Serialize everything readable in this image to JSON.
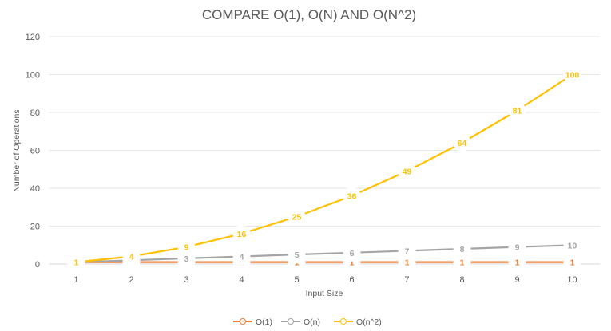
{
  "chart_data": {
    "type": "line",
    "title": "COMPARE O(1), O(N) AND O(N^2)",
    "xlabel": "Input Size",
    "ylabel": "Number of Operations",
    "categories": [
      "1",
      "2",
      "3",
      "4",
      "5",
      "6",
      "7",
      "8",
      "9",
      "10"
    ],
    "ylim": [
      0,
      120
    ],
    "yticks": [
      0,
      20,
      40,
      60,
      80,
      100,
      120
    ],
    "grid": true,
    "legend_position": "bottom",
    "series": [
      {
        "name": "O(1)",
        "color": "#ED7D31",
        "values": [
          1,
          1,
          1,
          1,
          1,
          1,
          1,
          1,
          1,
          1
        ]
      },
      {
        "name": "O(n)",
        "color": "#A5A5A5",
        "values": [
          1,
          2,
          3,
          4,
          5,
          6,
          7,
          8,
          9,
          10
        ]
      },
      {
        "name": "O(n^2)",
        "color": "#FFC000",
        "values": [
          1,
          4,
          9,
          16,
          25,
          36,
          49,
          64,
          81,
          100
        ]
      }
    ]
  }
}
